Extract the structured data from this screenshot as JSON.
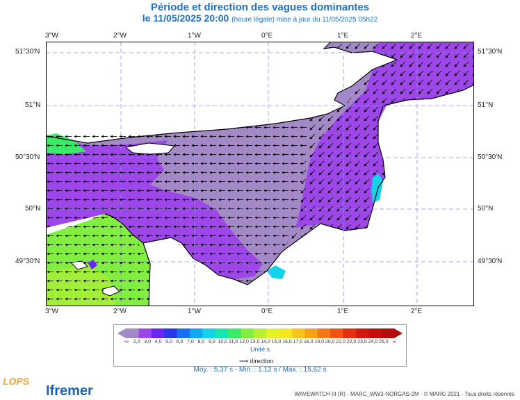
{
  "header": {
    "title": "Période et direction des vagues dominantes",
    "date": "le 11/05/2025 20:00",
    "update_note": "(heure légale) mise à jour du 11/05/2025 05h22"
  },
  "axes": {
    "lon_labels": [
      "3°W",
      "2°W",
      "1°W",
      "0°E",
      "1°E",
      "2°E"
    ],
    "lat_labels": [
      "51°30'N",
      "51°N",
      "50°30'N",
      "50°N",
      "49°30'N"
    ]
  },
  "colors": {
    "title": "#1f6fc4",
    "land": "#ffffff",
    "scale": [
      "#a389c6",
      "#9d47e8",
      "#6a25f3",
      "#2a37f2",
      "#1670f6",
      "#12a7f5",
      "#13d3ea",
      "#17e6b1",
      "#3bea67",
      "#83ee42",
      "#b7f033",
      "#e4f226",
      "#f5e71e",
      "#f8c519",
      "#f6a118",
      "#f57a15",
      "#f05312",
      "#e5300f",
      "#d3170d",
      "#c1100c",
      "#b00f0b"
    ]
  },
  "legend": {
    "ticks": [
      "-∞",
      "2,0",
      "3,0",
      "4,0",
      "5,0",
      "6,0",
      "7,0",
      "8,0",
      "9,0",
      "10,0",
      "11,0",
      "12,0",
      "13,0",
      "14,0",
      "15,0",
      "16,0",
      "17,0",
      "18,0",
      "19,0",
      "20,0",
      "21,0",
      "22,0",
      "23,0",
      "24,0",
      "25,0",
      "∞"
    ],
    "unit": "Unité:s",
    "direction_label": "direction"
  },
  "stats": "Moy. : 5,37 s   -   Min. : 1,12 s / Max. : 15,62 s",
  "logos": {
    "lops": "LOPS",
    "ifremer": "Ifremer"
  },
  "footer": "WAVEWATCH III (R) - MARC_WW3-NORGAS-2M - © MARC 2021 - Tous droits réservés"
}
